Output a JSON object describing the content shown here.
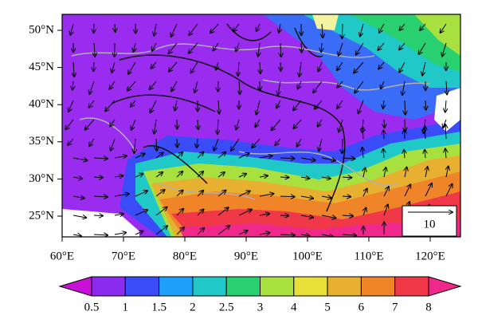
{
  "map": {
    "lon_ticks": [
      {
        "value": 60,
        "label": "60°E"
      },
      {
        "value": 70,
        "label": "70°E"
      },
      {
        "value": 80,
        "label": "80°E"
      },
      {
        "value": 90,
        "label": "90°E"
      },
      {
        "value": 100,
        "label": "100°E"
      },
      {
        "value": 110,
        "label": "110°E"
      },
      {
        "value": 120,
        "label": "120°E"
      }
    ],
    "lat_ticks": [
      {
        "value": 50,
        "label": "50°N"
      },
      {
        "value": 45,
        "label": "45°N"
      },
      {
        "value": 40,
        "label": "40°N"
      },
      {
        "value": 35,
        "label": "35°N"
      },
      {
        "value": 30,
        "label": "30°N"
      },
      {
        "value": 25,
        "label": "25°N"
      }
    ],
    "reference_vector": 10,
    "colorbar": {
      "levels": [
        0.5,
        1,
        1.5,
        2,
        2.5,
        3,
        4,
        5,
        6,
        7,
        8
      ],
      "colors": [
        "#c810d8",
        "#8a2cf0",
        "#3a4cf8",
        "#1ea0f8",
        "#20c8c8",
        "#28d070",
        "#a8e040",
        "#e8e038",
        "#e8b030",
        "#f08428",
        "#f03848",
        "#f0288c"
      ]
    }
  }
}
